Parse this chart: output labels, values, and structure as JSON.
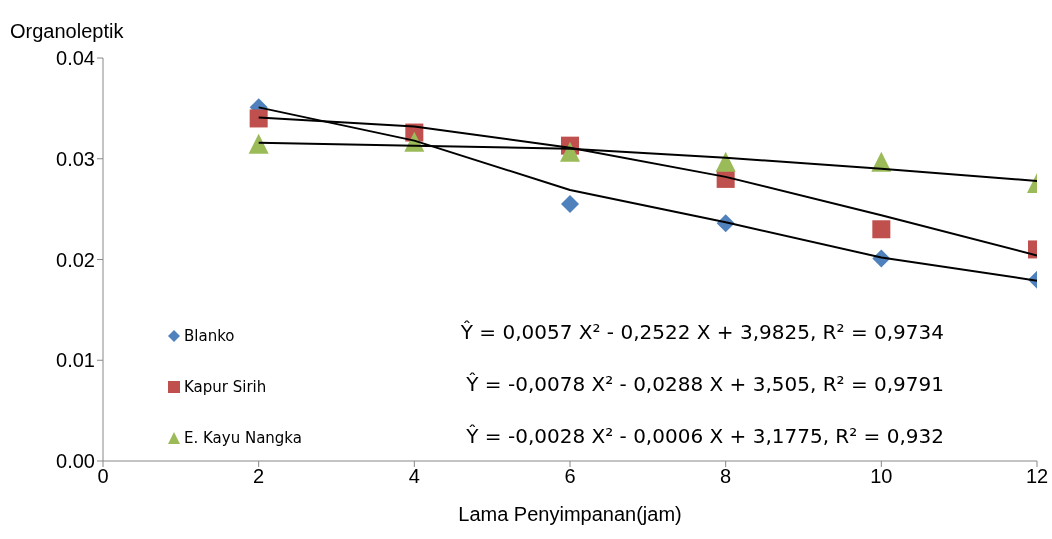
{
  "chart_data": {
    "type": "scatter",
    "xlabel": "Lama Penyimpanan(jam)",
    "ylabel": "Organoleptik",
    "xlim": [
      0,
      12
    ],
    "xticks": [
      0,
      2,
      4,
      6,
      8,
      10,
      12
    ],
    "ylim": [
      0,
      0.04
    ],
    "yticks": [
      {
        "value": 0,
        "label": "0.00"
      },
      0.01,
      0.02,
      0.03,
      0.04
    ],
    "grid": false,
    "legend": "left",
    "x": [
      2,
      4,
      6,
      8,
      10,
      12
    ],
    "series": [
      {
        "name": "Blanko",
        "color": "#4f81bd",
        "marker": "diamond",
        "values": [
          0.0351,
          null,
          0.0255,
          0.0236,
          0.0201,
          0.018
        ]
      },
      {
        "name": "Kapur Sirih",
        "color": "#c0504d",
        "marker": "square",
        "values": [
          0.034,
          0.0326,
          0.0313,
          0.028,
          0.023,
          0.021
        ]
      },
      {
        "name": "E. Kayu Nangka",
        "color": "#9bbb59",
        "marker": "triangle",
        "values": [
          0.0314,
          0.0316,
          0.0306,
          0.0296,
          0.0296,
          0.0275
        ]
      },
      {
        "type": "line",
        "color": "#000000",
        "marker": "none",
        "x": [
          2,
          4,
          6,
          8,
          10,
          12
        ],
        "values": [
          0.0351,
          0.0318,
          0.0269,
          0.0237,
          0.0202,
          0.0179
        ]
      },
      {
        "type": "line",
        "color": "#000000",
        "marker": "none",
        "x": [
          2,
          4,
          6,
          8,
          10,
          12
        ],
        "values": [
          0.0341,
          0.0332,
          0.0311,
          0.0282,
          0.0244,
          0.0204
        ]
      },
      {
        "type": "line",
        "color": "#000000",
        "marker": "none",
        "x": [
          2,
          4,
          6,
          8,
          10,
          12
        ],
        "values": [
          0.0316,
          0.0313,
          0.031,
          0.0301,
          0.029,
          0.0278
        ]
      }
    ],
    "annotations": [
      "Ŷ = 0,0057 X² - 0,2522 X + 3,9825, R² = 0,9734",
      "Ŷ = -0,0078 X² - 0,0288 X + 3,505, R² = 0,9791",
      "Ŷ = -0,0028 X² - 0,0006 X + 3,1775, R² = 0,932"
    ]
  }
}
